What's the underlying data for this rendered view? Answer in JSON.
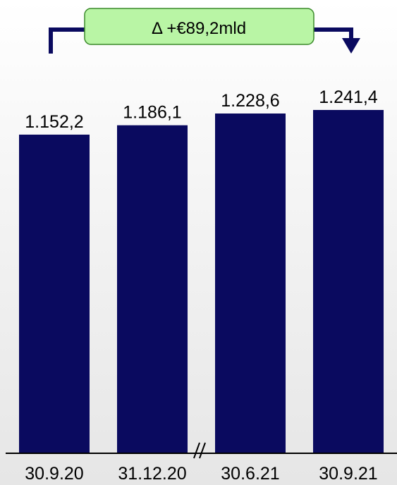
{
  "chart_data": {
    "type": "bar",
    "categories": [
      "30.9.20",
      "31.12.20",
      "30.6.21",
      "30.9.21"
    ],
    "values": [
      1152.2,
      1186.1,
      1228.6,
      1241.4
    ],
    "value_labels": [
      "1.152,2",
      "1.186,1",
      "1.228,6",
      "1.241,4"
    ],
    "ylim": [
      0,
      1300
    ],
    "title": "",
    "xlabel": "",
    "ylabel": "",
    "grid": false,
    "axis_break": "between 31.12.20 and 30.6.21",
    "annotation": {
      "text": "Δ +€89,2mld",
      "from": "30.9.20",
      "to": "30.9.21"
    },
    "colors": {
      "bar": "#0a0a5f",
      "connector": "#0a0a5f",
      "annotation_fill": "#b9f5a5",
      "annotation_border": "#3a8a2a"
    }
  }
}
